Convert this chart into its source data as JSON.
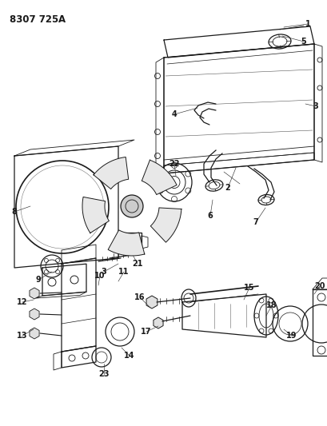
{
  "title": "8307 725A",
  "bg_color": "#ffffff",
  "dark": "#1a1a1a",
  "fig_w": 4.1,
  "fig_h": 5.33,
  "dpi": 100
}
